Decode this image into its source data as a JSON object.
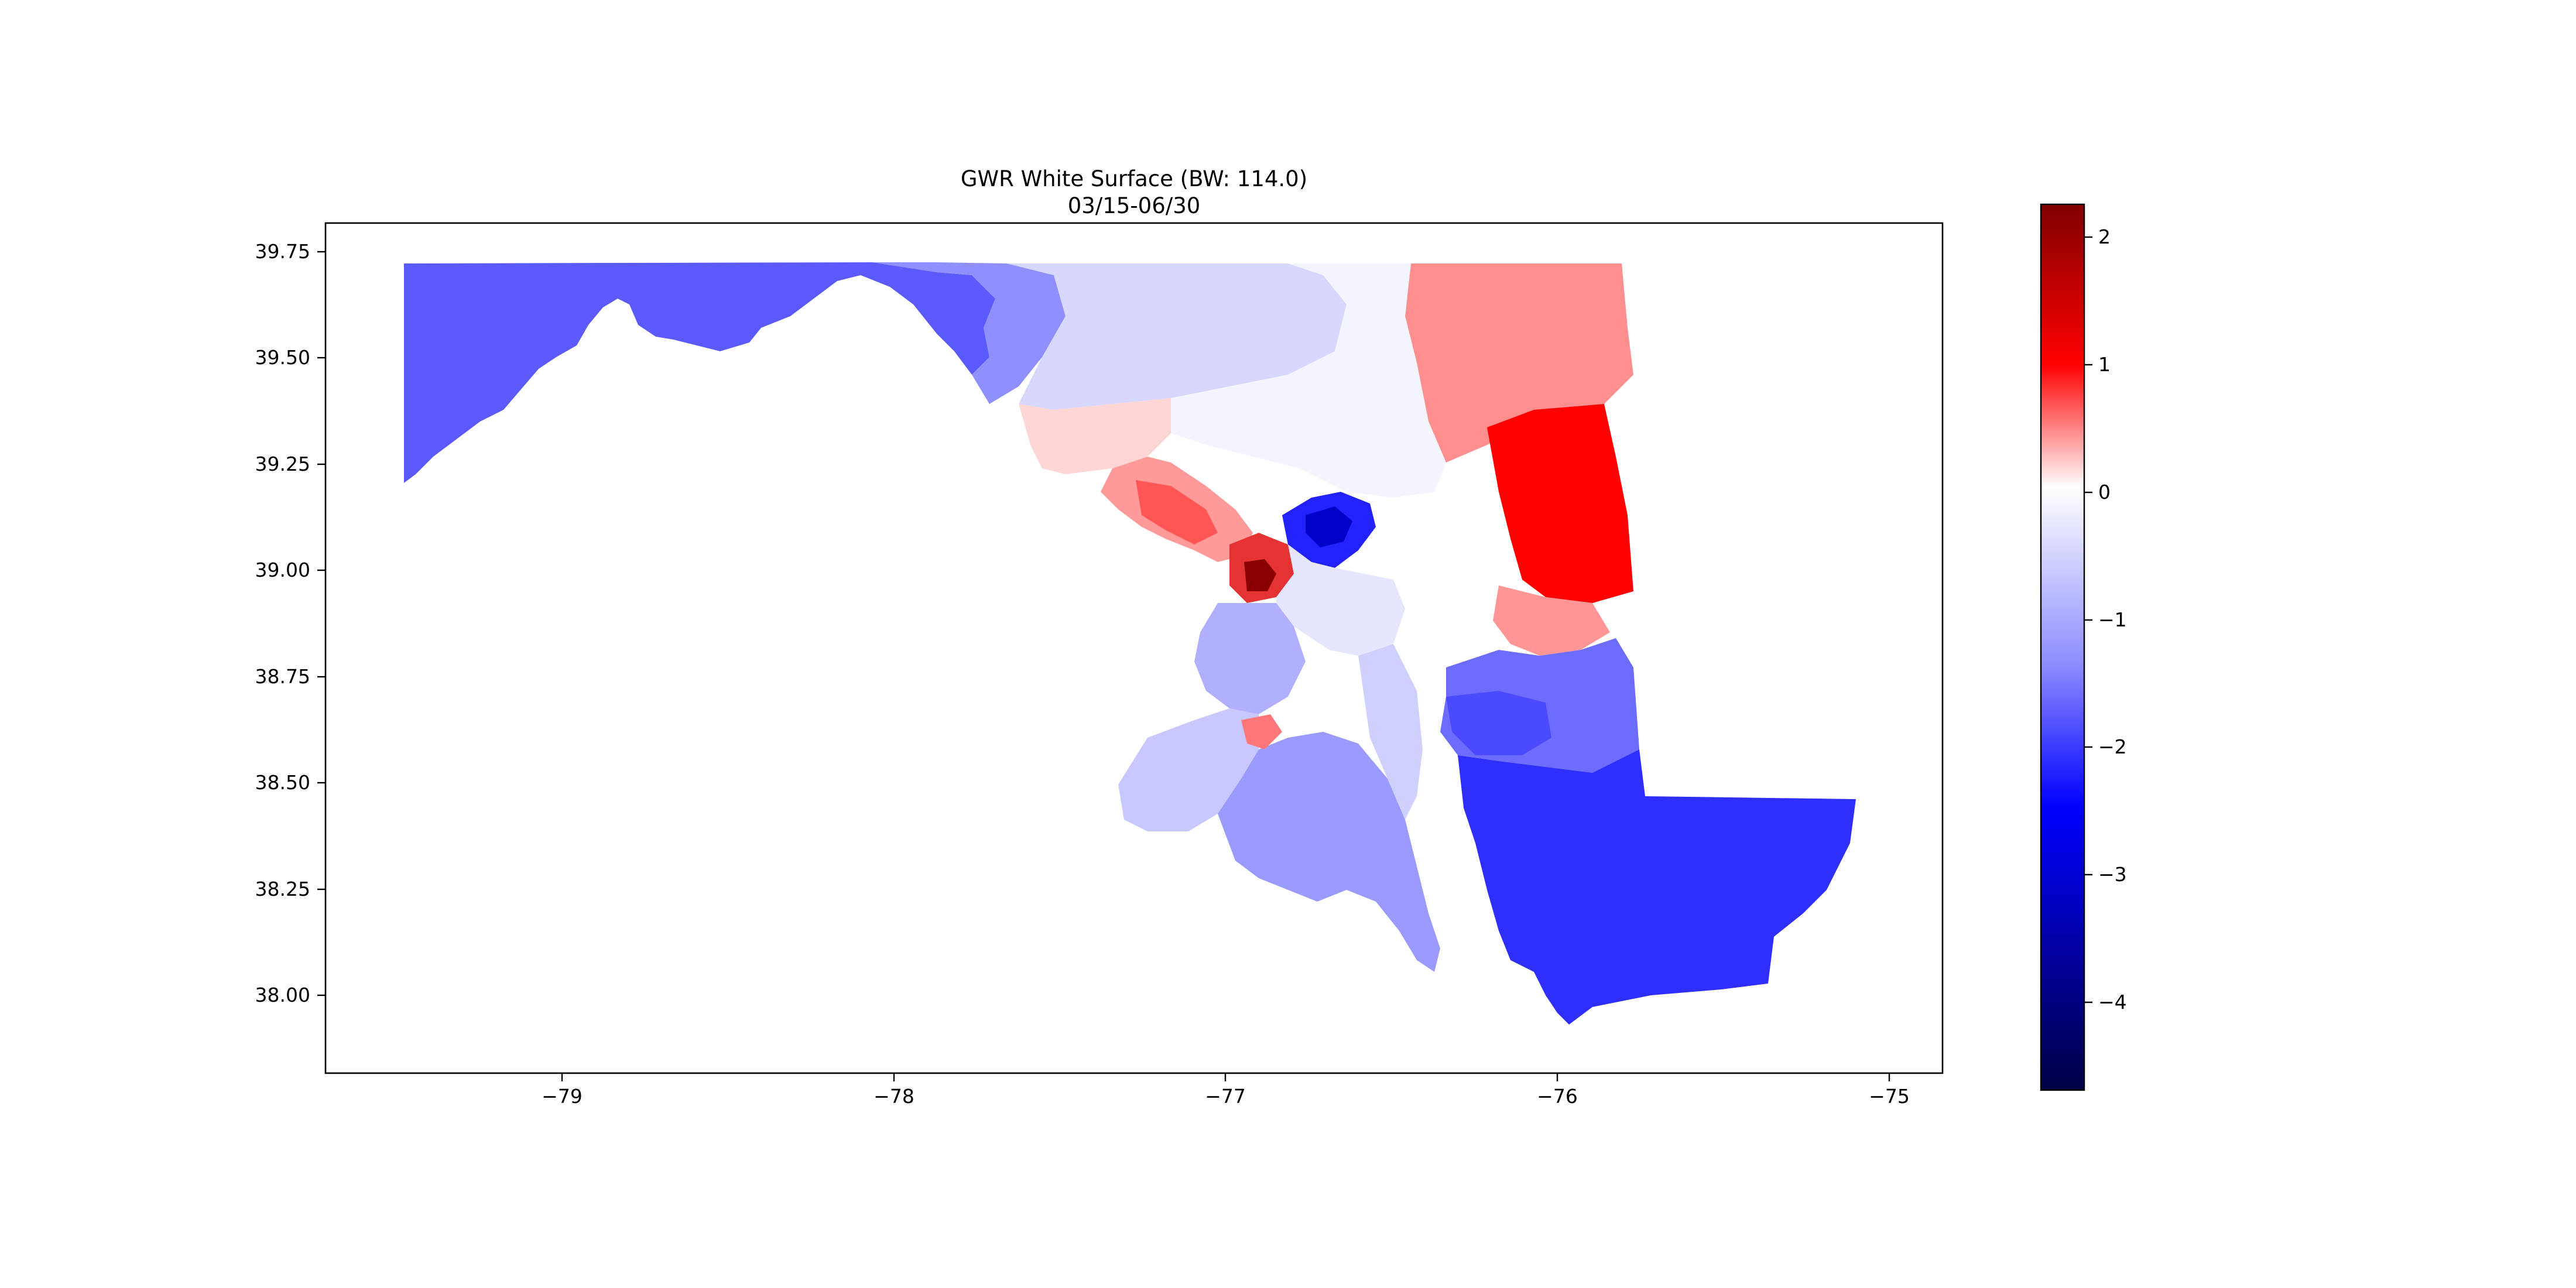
{
  "figure": {
    "title_line1": "GWR White Surface (BW: 114.0)",
    "title_line2": "03/15-06/30"
  },
  "map": {
    "type": "choropleth",
    "region": "Maryland",
    "x_ticks": [
      "−79",
      "−78",
      "−77",
      "−76",
      "−75"
    ],
    "y_ticks": [
      "39.75",
      "39.50",
      "39.25",
      "39.00",
      "38.75",
      "38.50",
      "38.25",
      "38.00"
    ],
    "xlim": [
      -79.72,
      -74.84
    ],
    "ylim": [
      37.82,
      39.82
    ]
  },
  "colorbar": {
    "colormap": "seismic",
    "range": [
      -4.7,
      2.25
    ],
    "ticks": [
      "2",
      "1",
      "0",
      "−1",
      "−2",
      "−3",
      "−4"
    ],
    "colors": {
      "max": "#800000",
      "high": "#ff0000",
      "mid": "#ffffff",
      "low": "#0000ff",
      "min": "#000046"
    }
  }
}
